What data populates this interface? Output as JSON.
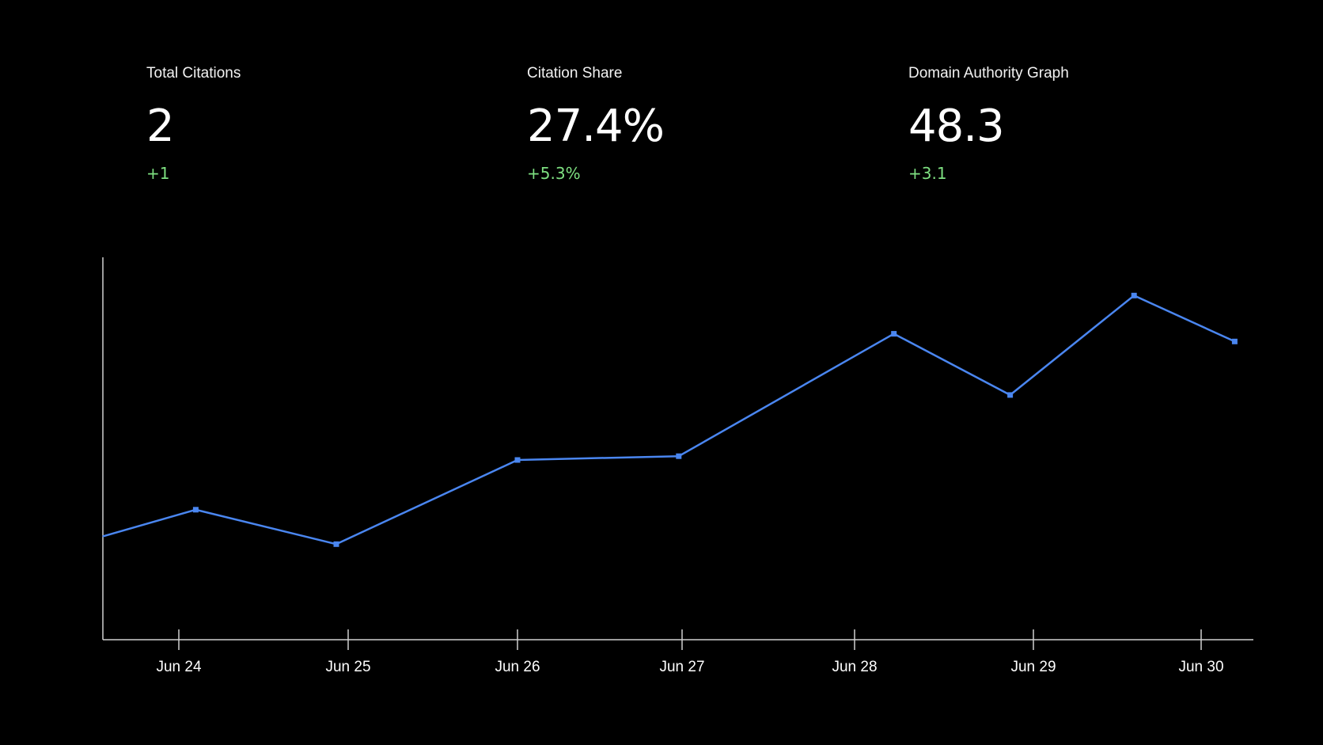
{
  "colors": {
    "background": "#000000",
    "text": "#ffffff",
    "positive": "#7ee081",
    "line": "#4a86f0",
    "axis": "#cfcfcf"
  },
  "metrics": [
    {
      "label": "Total Citations",
      "value": "2",
      "delta": "+1"
    },
    {
      "label": "Citation Share",
      "value": "27.4%",
      "delta": "+5.3%"
    },
    {
      "label": "Domain Authority Graph",
      "value": "48.3",
      "delta": "+3.1"
    }
  ],
  "chart_data": {
    "type": "line",
    "title": "",
    "xlabel": "",
    "ylabel": "",
    "grid": false,
    "x_ticks": [
      "Jun 24",
      "Jun 25",
      "Jun 26",
      "Jun 27",
      "Jun 28",
      "Jun 29",
      "Jun 30"
    ],
    "x_range": [
      23.55,
      30.3
    ],
    "ylim": [
      0,
      100
    ],
    "series": [
      {
        "x": [
          23.55,
          24.1,
          24.93,
          26.0,
          26.98,
          28.22,
          28.87,
          29.6,
          30.2
        ],
        "y": [
          27,
          34,
          25,
          47,
          48,
          80,
          64,
          90,
          78
        ]
      }
    ]
  }
}
